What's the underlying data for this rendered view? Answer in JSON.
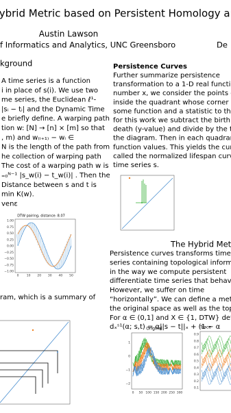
{
  "header": {
    "title": "A Hybrid Metric based on Persistent Homology and i",
    "author": "Austin Lawson",
    "affiliation": "f Informatics and Analytics, UNC Greensboro",
    "affiliation_right": "De"
  },
  "left": {
    "heading": "kground",
    "lines": [
      " A time series is a function",
      "i in place of s(i). We use two",
      "me series, the Euclidean ℓ¹-",
      "|sᵢ − tᵢ| and the Dynamic Time",
      "e briefly define. A warping path",
      "tion w: [N] → [n] × [m] so that",
      ", m)          and       w₍ᵢ₊₁₎ − wᵢ ∈",
      "N is the length of the path from",
      "he collection of warping path",
      "The cost of a warping path w is",
      "₌₀ᴺ⁻¹ |s_w(i) − t_w(i)| .  Then the",
      "Distance between s and t is",
      "min K(w).",
      "venε"
    ],
    "dtw_plot": {
      "title": "DTW pairing, distance: 8.07",
      "yticks": [
        "1.00",
        "0.75",
        "0.50",
        "0.25",
        "0.00",
        "−0.25",
        "−0.50",
        "−0.75",
        "−1.00"
      ],
      "xticks": [
        "0",
        "10",
        "20",
        "30",
        "40",
        "50"
      ]
    },
    "caption": "ram, which is a summary of"
  },
  "right": {
    "heading": "Persistence Curves",
    "lines": [
      "Further    summarize    persistence",
      "transformation to a 1-D real function.",
      "number x, we consider the points o",
      "inside the quadrant whose corner lie",
      "some function and a statistic to those",
      "for this work we subtract the birth",
      "death (y-value) and divide by the total",
      "the diagram. Then in each quadrant,",
      "function values. This yields the curve",
      "called the normalized lifespan curve",
      "time series s."
    ],
    "section_heading": "The Hybrid Metr",
    "lines2": [
      "Persistence curves transforms time",
      "series containing topological informat",
      "in the way we compute persistent",
      "differentiate time series that behave",
      "However,   we   suffer   on   time",
      "“horizontally”. We can define a met",
      "the original space as well as the top",
      "For α ∈ (0,1] and X ∈ {1, DTW} defin",
      "dₓˢ¹(α; s,t) = α||s − t||ₓ + (1 − α"
    ],
    "original_plot": {
      "title": "Original",
      "yticks": [
        "1",
        "0",
        "−1",
        "−2"
      ],
      "xticks": [
        "0",
        "50",
        "100",
        "150",
        "200",
        "250",
        "300"
      ]
    },
    "trace_plot": {
      "title": "Trace",
      "yticks": [
        "0.9",
        "0.8",
        "0.7",
        "0.6",
        "0.5",
        "0.4",
        "0.3",
        "0.2",
        "0.1"
      ]
    }
  }
}
